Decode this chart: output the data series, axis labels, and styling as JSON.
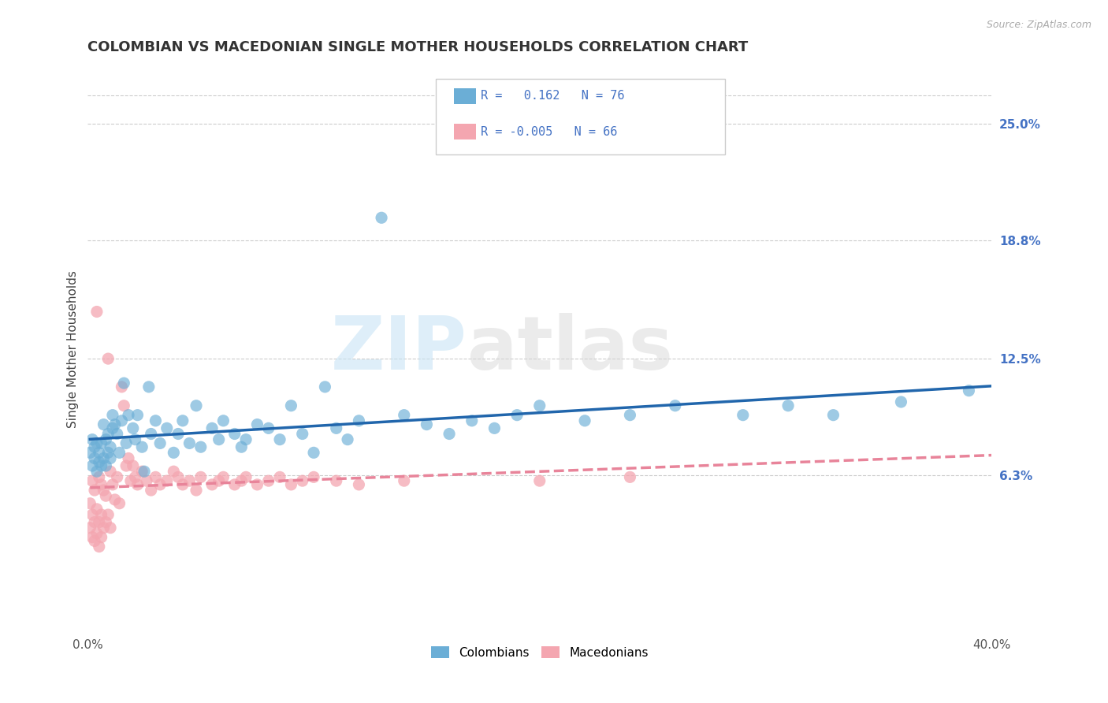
{
  "title": "COLOMBIAN VS MACEDONIAN SINGLE MOTHER HOUSEHOLDS CORRELATION CHART",
  "source": "Source: ZipAtlas.com",
  "ylabel": "Single Mother Households",
  "xlim": [
    0.0,
    0.4
  ],
  "ylim": [
    -0.02,
    0.28
  ],
  "y_tick_labels_right": [
    "25.0%",
    "18.8%",
    "12.5%",
    "6.3%"
  ],
  "y_tick_positions_right": [
    0.25,
    0.188,
    0.125,
    0.063
  ],
  "colombian_R": 0.162,
  "colombian_N": 76,
  "macedonian_R": -0.005,
  "macedonian_N": 66,
  "colombian_color": "#6baed6",
  "macedonian_color": "#f4a6b0",
  "colombian_line_color": "#2166ac",
  "macedonian_line_color": "#e8849a",
  "legend_label_colombians": "Colombians",
  "legend_label_macedonians": "Macedonians",
  "watermark_zip": "ZIP",
  "watermark_atlas": "atlas",
  "background_color": "#ffffff",
  "grid_color": "#cccccc",
  "colombians_x": [
    0.001,
    0.002,
    0.002,
    0.003,
    0.003,
    0.004,
    0.004,
    0.005,
    0.005,
    0.006,
    0.006,
    0.007,
    0.007,
    0.008,
    0.008,
    0.009,
    0.009,
    0.01,
    0.01,
    0.011,
    0.011,
    0.012,
    0.013,
    0.014,
    0.015,
    0.016,
    0.017,
    0.018,
    0.02,
    0.021,
    0.022,
    0.024,
    0.025,
    0.027,
    0.028,
    0.03,
    0.032,
    0.035,
    0.038,
    0.04,
    0.042,
    0.045,
    0.048,
    0.05,
    0.055,
    0.058,
    0.06,
    0.065,
    0.068,
    0.07,
    0.075,
    0.08,
    0.085,
    0.09,
    0.095,
    0.1,
    0.105,
    0.11,
    0.115,
    0.12,
    0.13,
    0.14,
    0.15,
    0.16,
    0.17,
    0.18,
    0.19,
    0.2,
    0.22,
    0.24,
    0.26,
    0.29,
    0.31,
    0.33,
    0.36,
    0.39
  ],
  "colombians_y": [
    0.075,
    0.068,
    0.082,
    0.072,
    0.078,
    0.065,
    0.08,
    0.07,
    0.075,
    0.068,
    0.08,
    0.072,
    0.09,
    0.068,
    0.082,
    0.075,
    0.085,
    0.078,
    0.072,
    0.088,
    0.095,
    0.09,
    0.085,
    0.075,
    0.092,
    0.112,
    0.08,
    0.095,
    0.088,
    0.082,
    0.095,
    0.078,
    0.065,
    0.11,
    0.085,
    0.092,
    0.08,
    0.088,
    0.075,
    0.085,
    0.092,
    0.08,
    0.1,
    0.078,
    0.088,
    0.082,
    0.092,
    0.085,
    0.078,
    0.082,
    0.09,
    0.088,
    0.082,
    0.1,
    0.085,
    0.075,
    0.11,
    0.088,
    0.082,
    0.092,
    0.2,
    0.095,
    0.09,
    0.085,
    0.092,
    0.088,
    0.095,
    0.1,
    0.092,
    0.095,
    0.1,
    0.095,
    0.1,
    0.095,
    0.102,
    0.108
  ],
  "macedonians_x": [
    0.001,
    0.001,
    0.002,
    0.002,
    0.002,
    0.003,
    0.003,
    0.003,
    0.004,
    0.004,
    0.004,
    0.005,
    0.005,
    0.005,
    0.006,
    0.006,
    0.006,
    0.007,
    0.007,
    0.008,
    0.008,
    0.009,
    0.009,
    0.01,
    0.01,
    0.011,
    0.012,
    0.013,
    0.014,
    0.015,
    0.016,
    0.017,
    0.018,
    0.019,
    0.02,
    0.021,
    0.022,
    0.024,
    0.026,
    0.028,
    0.03,
    0.032,
    0.035,
    0.038,
    0.04,
    0.042,
    0.045,
    0.048,
    0.05,
    0.055,
    0.058,
    0.06,
    0.065,
    0.068,
    0.07,
    0.075,
    0.08,
    0.085,
    0.09,
    0.095,
    0.1,
    0.11,
    0.12,
    0.14,
    0.2,
    0.24
  ],
  "macedonians_y": [
    0.048,
    0.035,
    0.06,
    0.042,
    0.03,
    0.055,
    0.038,
    0.028,
    0.15,
    0.045,
    0.032,
    0.062,
    0.038,
    0.025,
    0.058,
    0.042,
    0.03,
    0.055,
    0.035,
    0.052,
    0.038,
    0.125,
    0.042,
    0.065,
    0.035,
    0.058,
    0.05,
    0.062,
    0.048,
    0.11,
    0.1,
    0.068,
    0.072,
    0.06,
    0.068,
    0.062,
    0.058,
    0.065,
    0.06,
    0.055,
    0.062,
    0.058,
    0.06,
    0.065,
    0.062,
    0.058,
    0.06,
    0.055,
    0.062,
    0.058,
    0.06,
    0.062,
    0.058,
    0.06,
    0.062,
    0.058,
    0.06,
    0.062,
    0.058,
    0.06,
    0.062,
    0.06,
    0.058,
    0.06,
    0.06,
    0.062
  ]
}
